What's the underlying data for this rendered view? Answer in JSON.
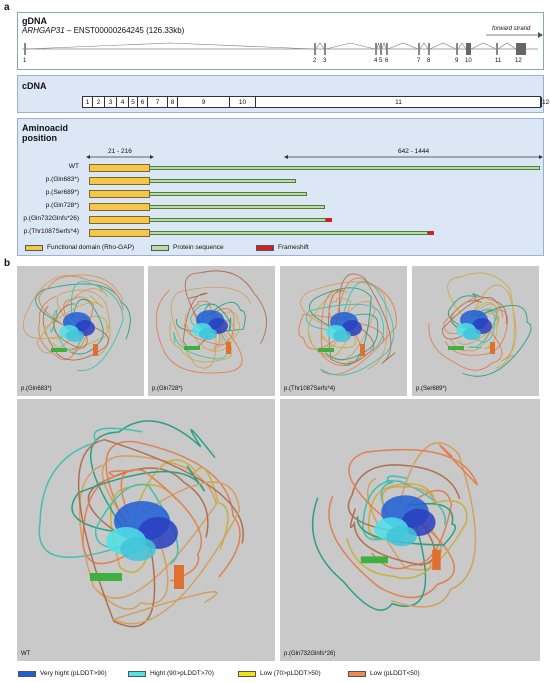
{
  "panel_a": {
    "label": "a",
    "gdna": {
      "title": "gDNA",
      "gene": "ARHGAP31",
      "transcript": " – ENST00000264245 (126.33kb)",
      "strand": "forward strand",
      "exon_labels": [
        "1",
        "2",
        "3",
        "4",
        "5",
        "6",
        "7",
        "8",
        "9",
        "10",
        "11",
        "12"
      ]
    },
    "cdna": {
      "title": "cDNA",
      "exons": [
        "1",
        "2",
        "3",
        "4",
        "5",
        "6",
        "7",
        "8",
        "9",
        "10",
        "11",
        "12"
      ]
    },
    "aa": {
      "title_line1": "Aminoacid",
      "title_line2": "position",
      "range1": "21 - 216",
      "range2": "642 - 1444",
      "rows": [
        "WT",
        "p.(Gln683*)",
        "p.(Ser689*)",
        "p.(Gln728*)",
        "p.(Gln732Glnfs*26)",
        "p.(Thr1087Serfs*4)"
      ]
    },
    "legend": {
      "domain": "Functional domain (Rho-GAP)",
      "protein": "Protein sequence",
      "frameshift": "Frameshift",
      "colors": {
        "domain": "#f5c64a",
        "protein": "#b9dba5",
        "frameshift": "#d42020"
      }
    }
  },
  "panel_b": {
    "label": "b",
    "structures": [
      "p.(Gln683*)",
      "p.(Gln728*)",
      "p.(Thr1087Serfs*4)",
      "p.(Ser689*)",
      "WT",
      "p.(Gln732Glnfs*26)"
    ],
    "legend": [
      {
        "label": "Very hight (pLDDT>90)",
        "color": "#1f5fd6"
      },
      {
        "label": "Hight (90>pLDDT>70)",
        "color": "#4fe0e8"
      },
      {
        "label": "Low (70>pLDDT>50)",
        "color": "#f2e01a"
      },
      {
        "label": "Low (pLDDT<50)",
        "color": "#f08a50"
      }
    ]
  }
}
